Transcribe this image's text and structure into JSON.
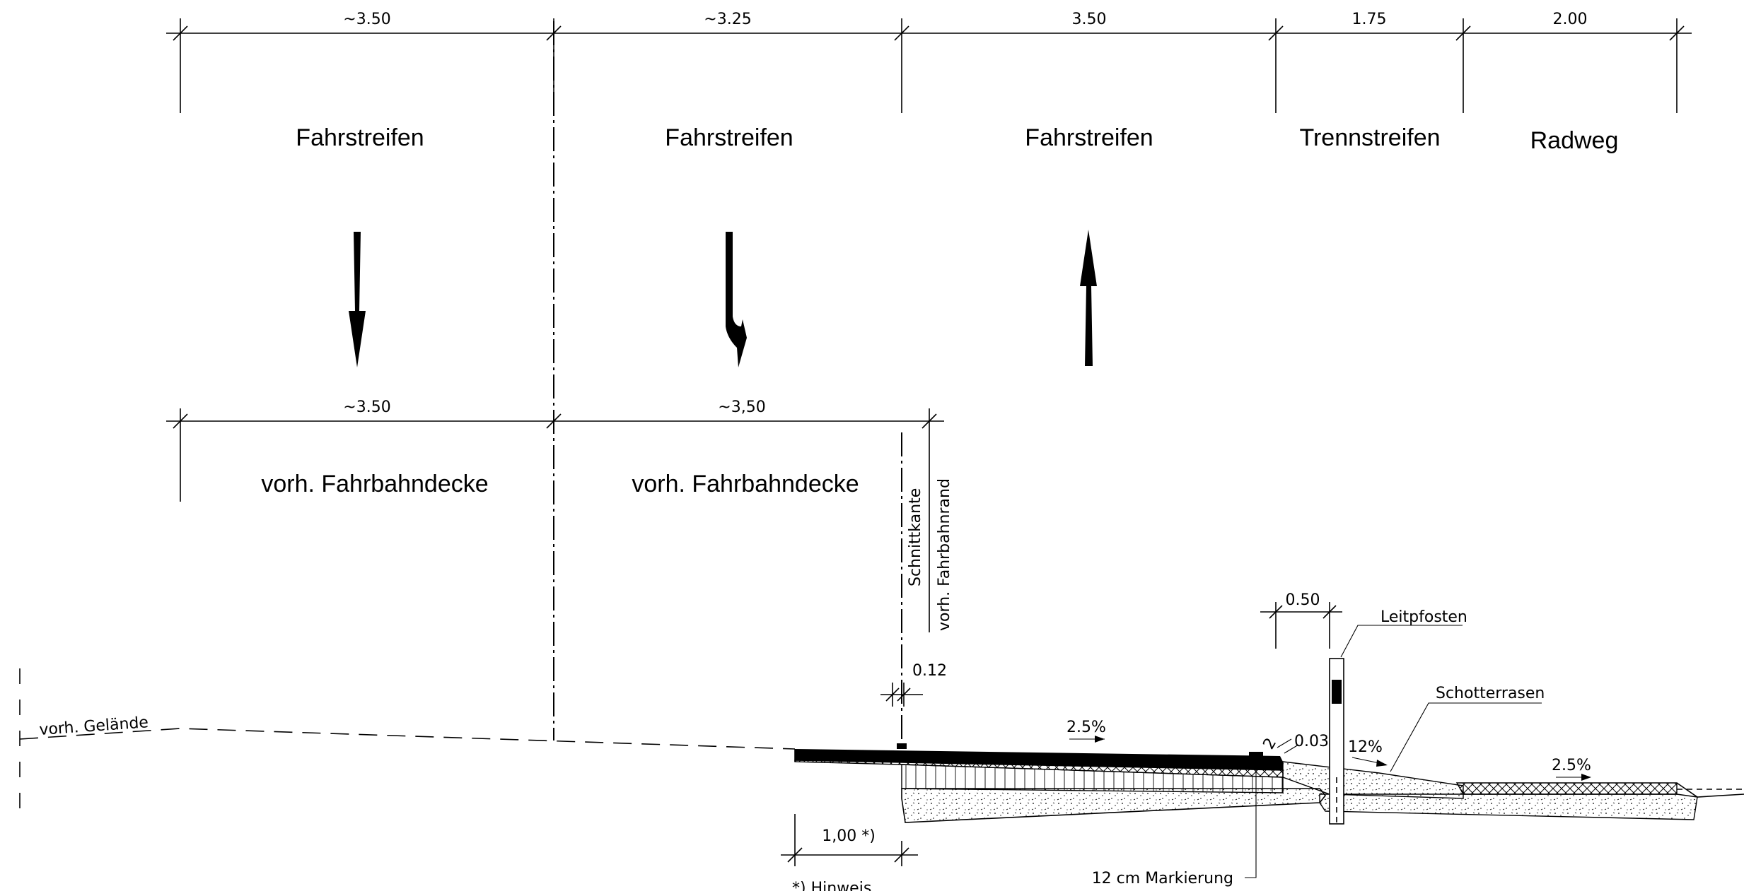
{
  "top_dimensions": [
    "~3.50",
    "~3.25",
    "3.50",
    "1.75",
    "2.00"
  ],
  "lanes": [
    "Fahrstreifen",
    "Fahrstreifen",
    "Fahrstreifen",
    "Trennstreifen",
    "Radweg"
  ],
  "mid_dimensions": [
    "~3.50",
    "~3,50"
  ],
  "existing": [
    "vorh. Fahrbahndecke",
    "vorh. Fahrbahndecke"
  ],
  "vertical_labels": {
    "cut_edge": "Schnittkante",
    "road_edge": "vorh. Fahrbahnrand"
  },
  "terrain_label": "vorh. Gelände",
  "section": {
    "dim_012": "0.12",
    "dim_050": "0.50",
    "dim_003": "0.03",
    "dim_2": "2",
    "slope_road": "2.5%",
    "slope_shoulder": "12%",
    "slope_bike": "2.5%",
    "leitpfosten": "Leitpfosten",
    "schotterrasen": "Schotterrasen",
    "dim_100": "1,00  *)",
    "markierung": "12 cm Markierung",
    "footnote": "*) Hinweis"
  },
  "colors": {
    "ink": "#000000",
    "paper": "#ffffff"
  }
}
